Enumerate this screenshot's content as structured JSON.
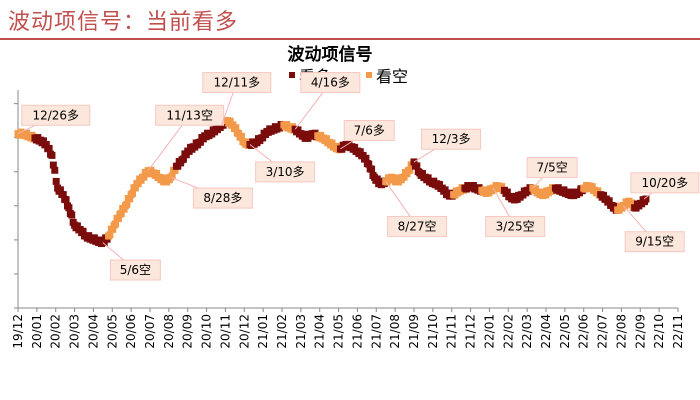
{
  "header": {
    "title": "波动项信号：当前看多"
  },
  "chart_data": {
    "type": "scatter",
    "title": "波动项信号",
    "legend": [
      {
        "name": "看多",
        "color": "#7b0c0c"
      },
      {
        "name": "看空",
        "color": "#f39a4a"
      }
    ],
    "x_ticks": [
      "19/12",
      "20/01",
      "20/02",
      "20/03",
      "20/04",
      "20/05",
      "20/06",
      "20/07",
      "20/08",
      "20/09",
      "20/10",
      "20/11",
      "20/12",
      "21/01",
      "21/02",
      "21/03",
      "21/04",
      "21/05",
      "21/06",
      "21/07",
      "21/08",
      "21/09",
      "21/10",
      "21/11",
      "21/12",
      "22/01",
      "22/02",
      "22/03",
      "22/04",
      "22/05",
      "22/06",
      "22/07",
      "22/08",
      "22/09",
      "22/10",
      "22/11"
    ],
    "ylim": [
      0,
      100
    ],
    "grid": false,
    "series": [
      {
        "name": "signal",
        "points": [
          {
            "x": 0.0,
            "y": 80,
            "s": "bear"
          },
          {
            "x": 0.3,
            "y": 80,
            "s": "bear"
          },
          {
            "x": 0.6,
            "y": 79,
            "s": "bear"
          },
          {
            "x": 0.9,
            "y": 78,
            "s": "bull"
          },
          {
            "x": 1.2,
            "y": 77,
            "s": "bull"
          },
          {
            "x": 1.5,
            "y": 75,
            "s": "bull"
          },
          {
            "x": 1.8,
            "y": 70,
            "s": "bull"
          },
          {
            "x": 2.1,
            "y": 55,
            "s": "bull"
          },
          {
            "x": 2.4,
            "y": 52,
            "s": "bull"
          },
          {
            "x": 2.7,
            "y": 46,
            "s": "bull"
          },
          {
            "x": 3.0,
            "y": 38,
            "s": "bull"
          },
          {
            "x": 3.3,
            "y": 36,
            "s": "bull"
          },
          {
            "x": 3.6,
            "y": 33,
            "s": "bull"
          },
          {
            "x": 3.9,
            "y": 32,
            "s": "bull"
          },
          {
            "x": 4.2,
            "y": 31,
            "s": "bull"
          },
          {
            "x": 4.5,
            "y": 30,
            "s": "bull"
          },
          {
            "x": 4.8,
            "y": 33,
            "s": "bear"
          },
          {
            "x": 5.1,
            "y": 38,
            "s": "bear"
          },
          {
            "x": 5.4,
            "y": 43,
            "s": "bear"
          },
          {
            "x": 5.7,
            "y": 47,
            "s": "bear"
          },
          {
            "x": 6.0,
            "y": 52,
            "s": "bear"
          },
          {
            "x": 6.3,
            "y": 57,
            "s": "bear"
          },
          {
            "x": 6.6,
            "y": 60,
            "s": "bear"
          },
          {
            "x": 6.9,
            "y": 63,
            "s": "bear"
          },
          {
            "x": 7.2,
            "y": 62,
            "s": "bear"
          },
          {
            "x": 7.5,
            "y": 60,
            "s": "bear"
          },
          {
            "x": 7.8,
            "y": 58,
            "s": "bear"
          },
          {
            "x": 8.1,
            "y": 60,
            "s": "bear"
          },
          {
            "x": 8.4,
            "y": 65,
            "s": "bull"
          },
          {
            "x": 8.7,
            "y": 68,
            "s": "bull"
          },
          {
            "x": 9.0,
            "y": 72,
            "s": "bull"
          },
          {
            "x": 9.3,
            "y": 74,
            "s": "bull"
          },
          {
            "x": 9.6,
            "y": 76,
            "s": "bull"
          },
          {
            "x": 9.9,
            "y": 79,
            "s": "bull"
          },
          {
            "x": 10.2,
            "y": 80,
            "s": "bull"
          },
          {
            "x": 10.5,
            "y": 82,
            "s": "bull"
          },
          {
            "x": 10.8,
            "y": 84,
            "s": "bull"
          },
          {
            "x": 11.1,
            "y": 86,
            "s": "bear"
          },
          {
            "x": 11.4,
            "y": 84,
            "s": "bear"
          },
          {
            "x": 11.7,
            "y": 80,
            "s": "bear"
          },
          {
            "x": 12.0,
            "y": 76,
            "s": "bear"
          },
          {
            "x": 12.3,
            "y": 75,
            "s": "bull"
          },
          {
            "x": 12.6,
            "y": 76,
            "s": "bull"
          },
          {
            "x": 12.9,
            "y": 78,
            "s": "bull"
          },
          {
            "x": 13.2,
            "y": 81,
            "s": "bull"
          },
          {
            "x": 13.5,
            "y": 82,
            "s": "bull"
          },
          {
            "x": 13.8,
            "y": 83,
            "s": "bull"
          },
          {
            "x": 14.1,
            "y": 84,
            "s": "bear"
          },
          {
            "x": 14.4,
            "y": 83,
            "s": "bear"
          },
          {
            "x": 14.7,
            "y": 82,
            "s": "bull"
          },
          {
            "x": 15.0,
            "y": 80,
            "s": "bull"
          },
          {
            "x": 15.3,
            "y": 78,
            "s": "bull"
          },
          {
            "x": 15.6,
            "y": 80,
            "s": "bull"
          },
          {
            "x": 15.9,
            "y": 79,
            "s": "bear"
          },
          {
            "x": 16.2,
            "y": 78,
            "s": "bear"
          },
          {
            "x": 16.5,
            "y": 76,
            "s": "bear"
          },
          {
            "x": 16.8,
            "y": 74,
            "s": "bear"
          },
          {
            "x": 17.1,
            "y": 73,
            "s": "bull"
          },
          {
            "x": 17.4,
            "y": 75,
            "s": "bull"
          },
          {
            "x": 17.7,
            "y": 74,
            "s": "bull"
          },
          {
            "x": 18.0,
            "y": 72,
            "s": "bull"
          },
          {
            "x": 18.3,
            "y": 70,
            "s": "bull"
          },
          {
            "x": 18.6,
            "y": 66,
            "s": "bull"
          },
          {
            "x": 18.9,
            "y": 60,
            "s": "bull"
          },
          {
            "x": 19.2,
            "y": 57,
            "s": "bull"
          },
          {
            "x": 19.5,
            "y": 58,
            "s": "bear"
          },
          {
            "x": 19.8,
            "y": 60,
            "s": "bear"
          },
          {
            "x": 20.1,
            "y": 58,
            "s": "bear"
          },
          {
            "x": 20.4,
            "y": 60,
            "s": "bear"
          },
          {
            "x": 20.7,
            "y": 63,
            "s": "bear"
          },
          {
            "x": 21.0,
            "y": 67,
            "s": "bull"
          },
          {
            "x": 21.3,
            "y": 62,
            "s": "bull"
          },
          {
            "x": 21.6,
            "y": 60,
            "s": "bull"
          },
          {
            "x": 21.9,
            "y": 58,
            "s": "bull"
          },
          {
            "x": 22.2,
            "y": 57,
            "s": "bull"
          },
          {
            "x": 22.5,
            "y": 55,
            "s": "bull"
          },
          {
            "x": 22.8,
            "y": 52,
            "s": "bull"
          },
          {
            "x": 23.1,
            "y": 52,
            "s": "bear"
          },
          {
            "x": 23.4,
            "y": 54,
            "s": "bear"
          },
          {
            "x": 23.7,
            "y": 55,
            "s": "bull"
          },
          {
            "x": 24.0,
            "y": 56,
            "s": "bull"
          },
          {
            "x": 24.3,
            "y": 55,
            "s": "bull"
          },
          {
            "x": 24.6,
            "y": 54,
            "s": "bear"
          },
          {
            "x": 24.9,
            "y": 53,
            "s": "bear"
          },
          {
            "x": 25.2,
            "y": 55,
            "s": "bear"
          },
          {
            "x": 25.5,
            "y": 56,
            "s": "bear"
          },
          {
            "x": 25.8,
            "y": 54,
            "s": "bull"
          },
          {
            "x": 26.1,
            "y": 51,
            "s": "bull"
          },
          {
            "x": 26.4,
            "y": 50,
            "s": "bull"
          },
          {
            "x": 26.7,
            "y": 52,
            "s": "bull"
          },
          {
            "x": 27.0,
            "y": 54,
            "s": "bull"
          },
          {
            "x": 27.3,
            "y": 55,
            "s": "bear"
          },
          {
            "x": 27.6,
            "y": 53,
            "s": "bear"
          },
          {
            "x": 27.9,
            "y": 52,
            "s": "bear"
          },
          {
            "x": 28.2,
            "y": 54,
            "s": "bear"
          },
          {
            "x": 28.5,
            "y": 55,
            "s": "bull"
          },
          {
            "x": 28.8,
            "y": 54,
            "s": "bull"
          },
          {
            "x": 29.1,
            "y": 53,
            "s": "bull"
          },
          {
            "x": 29.4,
            "y": 52,
            "s": "bull"
          },
          {
            "x": 29.7,
            "y": 53,
            "s": "bull"
          },
          {
            "x": 30.0,
            "y": 55,
            "s": "bear"
          },
          {
            "x": 30.3,
            "y": 56,
            "s": "bear"
          },
          {
            "x": 30.6,
            "y": 54,
            "s": "bear"
          },
          {
            "x": 30.9,
            "y": 52,
            "s": "bull"
          },
          {
            "x": 31.2,
            "y": 50,
            "s": "bull"
          },
          {
            "x": 31.5,
            "y": 47,
            "s": "bull"
          },
          {
            "x": 31.8,
            "y": 45,
            "s": "bear"
          },
          {
            "x": 32.1,
            "y": 47,
            "s": "bear"
          },
          {
            "x": 32.4,
            "y": 49,
            "s": "bear"
          },
          {
            "x": 32.7,
            "y": 46,
            "s": "bull"
          },
          {
            "x": 33.0,
            "y": 48,
            "s": "bull"
          },
          {
            "x": 33.3,
            "y": 50,
            "s": "bull"
          }
        ]
      }
    ],
    "annotations": [
      {
        "label": "12/26多",
        "x": 0.0,
        "y": 80,
        "lx": 0.2,
        "ly": 93
      },
      {
        "label": "5/6空",
        "x": 4.5,
        "y": 30,
        "lx": 4.9,
        "ly": 22
      },
      {
        "label": "11/13空",
        "x": 6.9,
        "y": 63,
        "lx": 7.3,
        "ly": 93
      },
      {
        "label": "8/28多",
        "x": 8.1,
        "y": 60,
        "lx": 9.3,
        "ly": 55
      },
      {
        "label": "12/11多",
        "x": 10.8,
        "y": 84,
        "lx": 9.8,
        "ly": 108
      },
      {
        "label": "3/10多",
        "x": 12.3,
        "y": 75,
        "lx": 12.6,
        "ly": 67
      },
      {
        "label": "4/16多",
        "x": 14.7,
        "y": 82,
        "lx": 15.0,
        "ly": 108
      },
      {
        "label": "7/6多",
        "x": 17.1,
        "y": 73,
        "lx": 17.3,
        "ly": 86
      },
      {
        "label": "8/27空",
        "x": 19.5,
        "y": 58,
        "lx": 19.6,
        "ly": 42
      },
      {
        "label": "12/3多",
        "x": 21.0,
        "y": 67,
        "lx": 21.4,
        "ly": 82
      },
      {
        "label": "3/25空",
        "x": 25.2,
        "y": 55,
        "lx": 24.8,
        "ly": 42
      },
      {
        "label": "7/5空",
        "x": 27.3,
        "y": 55,
        "lx": 27.0,
        "ly": 69
      },
      {
        "label": "10/20多",
        "x": 33.2,
        "y": 50,
        "lx": 32.5,
        "ly": 62
      },
      {
        "label": "9/15空",
        "x": 32.1,
        "y": 47,
        "lx": 32.2,
        "ly": 35
      }
    ]
  }
}
